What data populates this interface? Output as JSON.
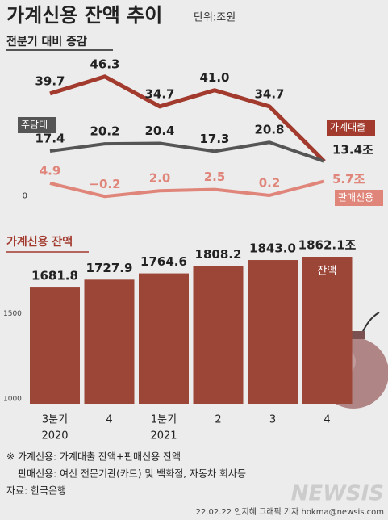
{
  "header": {
    "title": "가계신용 잔액 추이",
    "unit": "단위:조원"
  },
  "chart_data": [
    {
      "type": "line",
      "title": "전분기 대비 증감",
      "ylim": [
        -2,
        50
      ],
      "yticks": [
        0
      ],
      "series": [
        {
          "name": "가계대출",
          "color": "#a23a2e",
          "values": [
            39.7,
            46.3,
            34.7,
            41.0,
            34.7,
            13.4
          ],
          "value_labels": [
            "39.7",
            "46.3",
            "34.7",
            "41.0",
            "34.7",
            "13.4조"
          ]
        },
        {
          "name": "주담대",
          "color": "#555555",
          "values": [
            17.4,
            20.2,
            20.4,
            17.3,
            20.8,
            13.4
          ],
          "value_labels": [
            "17.4",
            "20.2",
            "20.4",
            "17.3",
            "20.8",
            null
          ]
        },
        {
          "name": "판매신용",
          "color": "#e0857a",
          "values": [
            4.9,
            -0.2,
            2.0,
            2.5,
            0.2,
            5.7
          ],
          "value_labels": [
            "4.9",
            "−0.2",
            "2.0",
            "2.5",
            "0.2",
            "5.7조"
          ]
        }
      ]
    },
    {
      "type": "bar",
      "title": "가계신용 잔액",
      "categories": [
        [
          "3분기",
          "2020"
        ],
        [
          "4"
        ],
        [
          "1분기",
          "2021"
        ],
        [
          "2"
        ],
        [
          "3"
        ],
        [
          "4"
        ]
      ],
      "values": [
        1681.8,
        1727.9,
        1764.6,
        1808.2,
        1843.0,
        1862.1
      ],
      "value_labels": [
        "1681.8",
        "1727.9",
        "1764.6",
        "1808.2",
        "1843.0",
        "1862.1조"
      ],
      "color": "#9c4638",
      "ylim": [
        1000,
        1900
      ],
      "yticks": [
        1000,
        1500
      ],
      "annotation": "잔액"
    }
  ],
  "notes": [
    "※ 가계신용: 가계대출 잔액+판매신용 잔액",
    "판매신용: 여신 전문기관(카드) 및 백화점, 자동차 회사등",
    "자료: 한국은행"
  ],
  "credit": "22.02.22 안지혜 그래픽 기자 hokma@newsis.com",
  "watermark": "NEWSIS"
}
